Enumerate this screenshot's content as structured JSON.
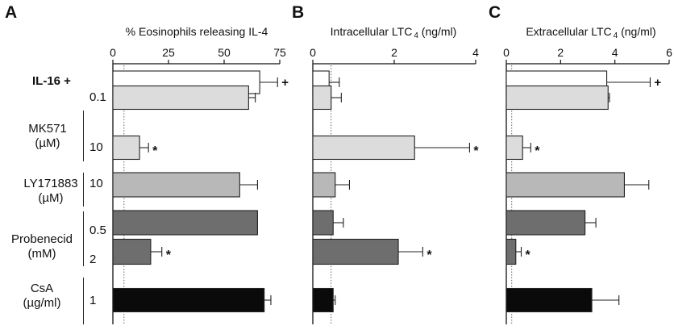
{
  "row_labels": {
    "il16": "IL-16 +",
    "mk571_line1": "MK571",
    "mk571_line2": "(µM)",
    "mk571_dose1": "0.1",
    "mk571_dose2": "10",
    "ly_line1": "LY171883",
    "ly_line2": "(µM)",
    "ly_dose": "10",
    "prob_line1": "Probenecid",
    "prob_line2": "(mM)",
    "prob_dose1": "0.5",
    "prob_dose2": "2",
    "csa_line1": "CsA",
    "csa_line2": "(µg/ml)",
    "csa_dose": "1"
  },
  "colors": [
    "#ffffff",
    "#dcdcdc",
    "#dcdcdc",
    "#b8b8b8",
    "#6e6e6e",
    "#6e6e6e",
    "#0a0a0a"
  ],
  "chart_data": [
    {
      "type": "bar",
      "panel": "A",
      "title": "% Eosinophils releasing IL-4",
      "xlim": [
        0,
        75
      ],
      "ticks": [
        0,
        25,
        50,
        75
      ],
      "baseline": 5,
      "values": [
        66,
        61,
        12,
        57,
        65,
        17,
        68
      ],
      "errors": [
        8,
        3,
        4,
        8,
        0,
        5,
        3
      ],
      "annotations": [
        "+",
        "",
        "*",
        "",
        "",
        "*",
        ""
      ]
    },
    {
      "type": "bar",
      "panel": "B",
      "title": "Intracellular LTC",
      "title_sub": "4",
      "title_unit": " (ng/ml)",
      "xlim": [
        0,
        4
      ],
      "ticks": [
        0,
        2,
        4
      ],
      "baseline": 0.45,
      "values": [
        0.4,
        0.45,
        2.5,
        0.55,
        0.5,
        2.1,
        0.5
      ],
      "errors": [
        0.25,
        0.25,
        1.35,
        0.35,
        0.25,
        0.6,
        0.05
      ],
      "annotations": [
        "",
        "",
        "*",
        "",
        "",
        "*",
        ""
      ]
    },
    {
      "type": "bar",
      "panel": "C",
      "title": "Extracellular LTC",
      "title_sub": "4",
      "title_unit": " (ng/ml)",
      "xlim": [
        0,
        6
      ],
      "ticks": [
        0,
        2,
        4,
        6
      ],
      "baseline": 0.2,
      "values": [
        3.7,
        3.75,
        0.6,
        4.35,
        2.9,
        0.35,
        3.15
      ],
      "errors": [
        1.6,
        0.05,
        0.3,
        0.9,
        0.4,
        0.2,
        1.0
      ],
      "annotations": [
        "+",
        "",
        "*",
        "",
        "",
        "*",
        ""
      ]
    }
  ]
}
